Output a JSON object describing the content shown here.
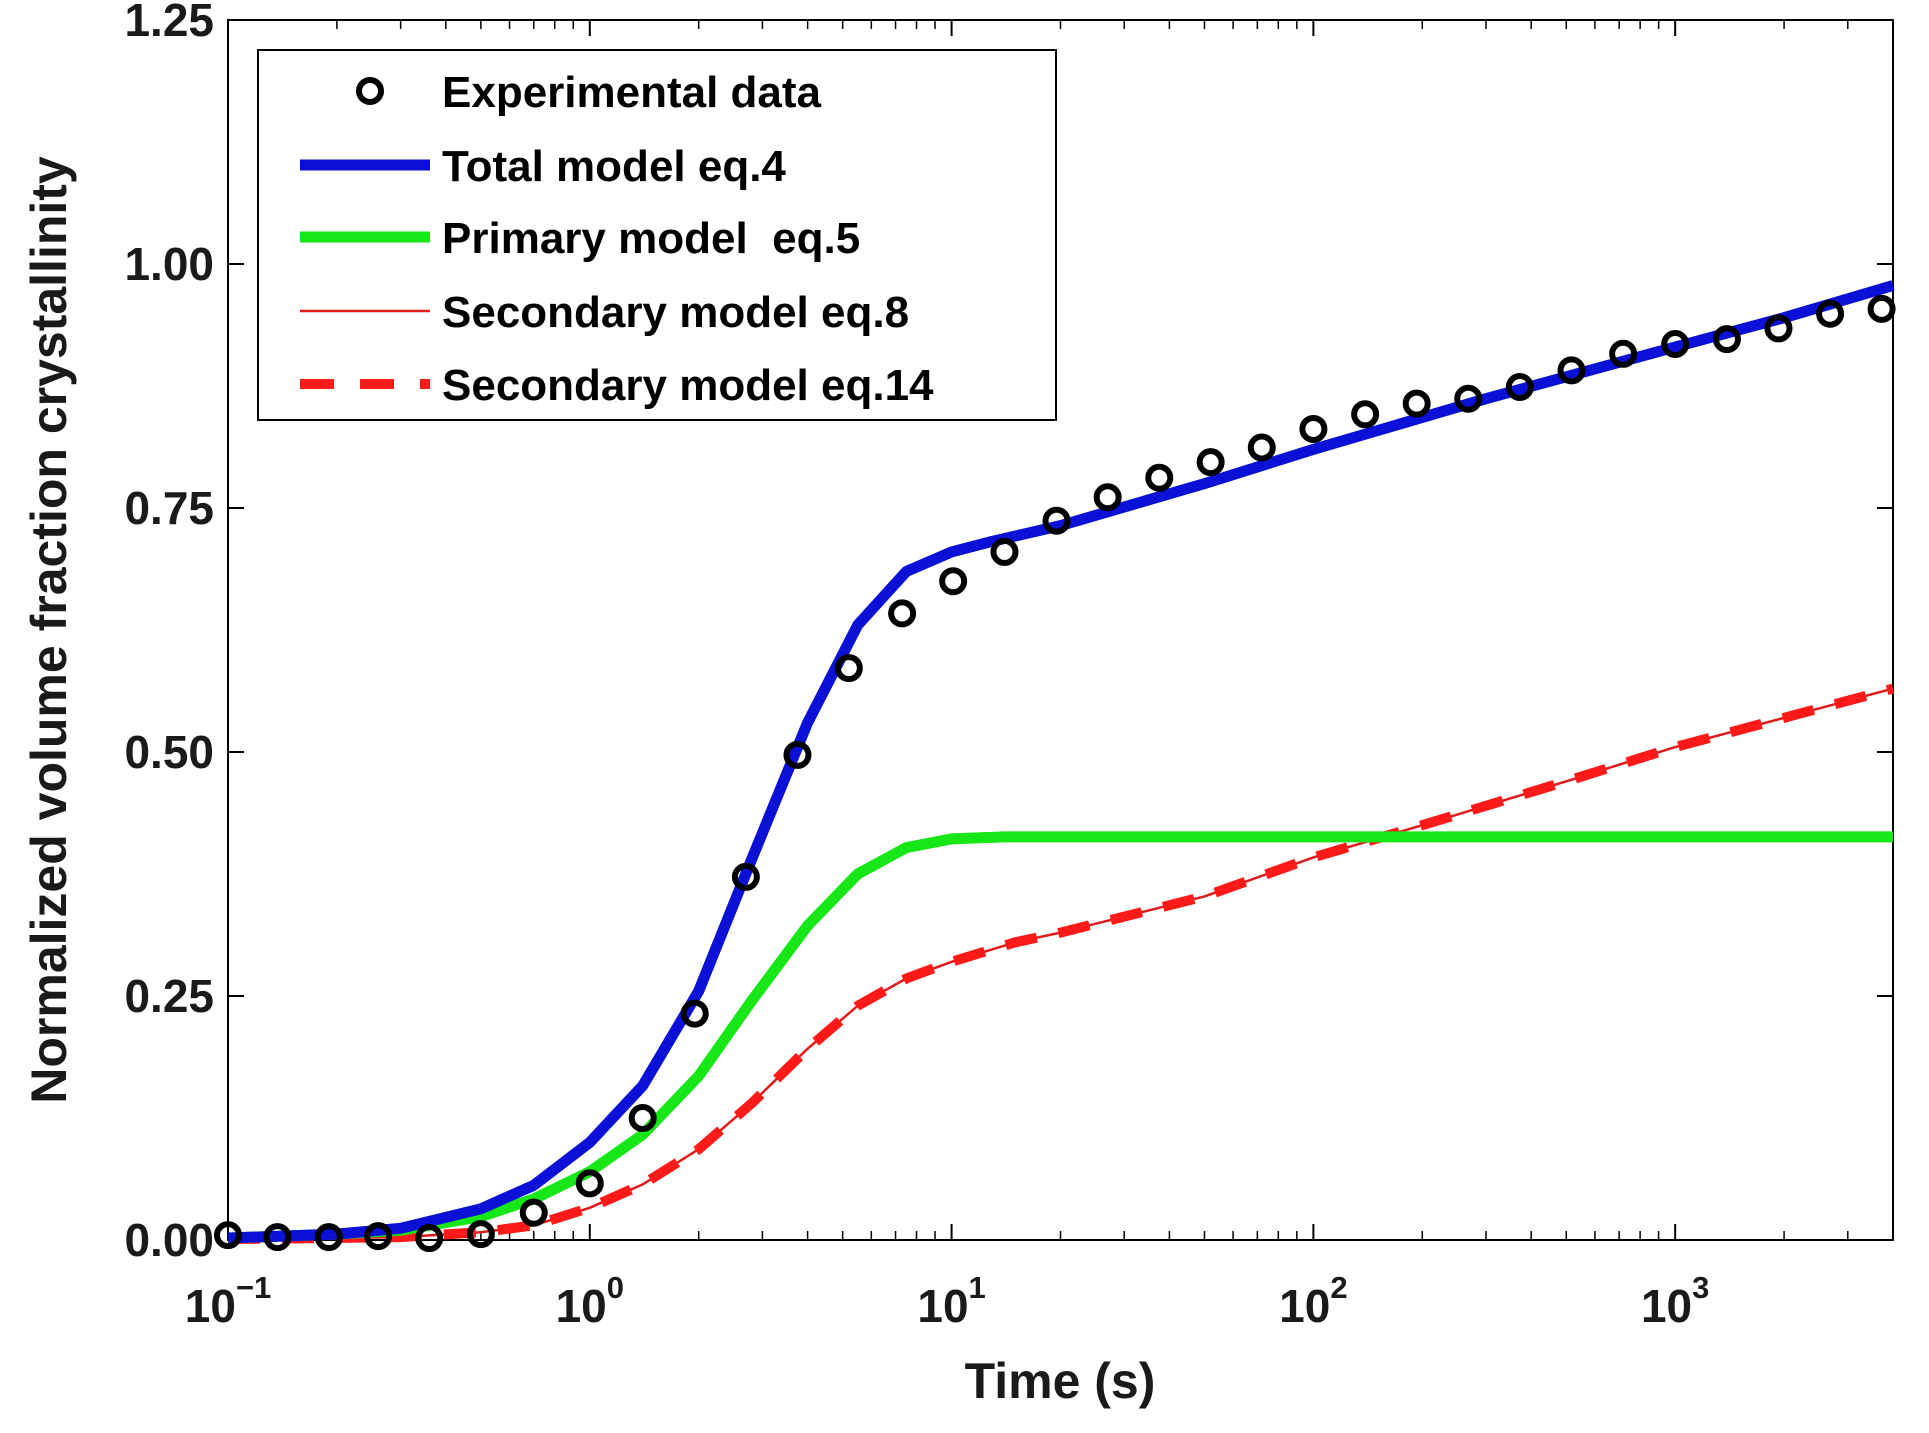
{
  "chart_data": {
    "type": "line",
    "title": "",
    "xlabel": "Time (s)",
    "ylabel": "Normalized volume fraction crystallinity",
    "xscale": "log",
    "xlim": [
      0.1,
      4000
    ],
    "ylim": [
      0,
      1.25
    ],
    "x_ticks": [
      {
        "value": 0.1,
        "base": "10",
        "exp": "−1"
      },
      {
        "value": 1,
        "base": "10",
        "exp": "0"
      },
      {
        "value": 10,
        "base": "10",
        "exp": "1"
      },
      {
        "value": 100,
        "base": "10",
        "exp": "2"
      },
      {
        "value": 1000,
        "base": "10",
        "exp": "3"
      }
    ],
    "y_ticks": [
      {
        "value": 0,
        "label": "0.00"
      },
      {
        "value": 0.25,
        "label": "0.25"
      },
      {
        "value": 0.5,
        "label": "0.50"
      },
      {
        "value": 0.75,
        "label": "0.75"
      },
      {
        "value": 1.0,
        "label": "1.00"
      },
      {
        "value": 1.25,
        "label": "1.25"
      }
    ],
    "grid": false,
    "legend_position": "top-left",
    "series": [
      {
        "name": "Experimental data",
        "style": "markers",
        "color": "#000000",
        "x": [
          0.1,
          0.137,
          0.19,
          0.26,
          0.36,
          0.5,
          0.7,
          1.0,
          1.4,
          1.95,
          2.7,
          3.75,
          5.2,
          7.3,
          10.1,
          14,
          19.5,
          27,
          37.5,
          52,
          72,
          100,
          139,
          193,
          268,
          372,
          517,
          718,
          1000,
          1390,
          1930,
          2680,
          3720
        ],
        "y": [
          0.005,
          0.003,
          0.003,
          0.004,
          0.002,
          0.006,
          0.028,
          0.058,
          0.125,
          0.232,
          0.372,
          0.497,
          0.586,
          0.642,
          0.675,
          0.705,
          0.737,
          0.761,
          0.781,
          0.797,
          0.812,
          0.831,
          0.846,
          0.857,
          0.862,
          0.874,
          0.891,
          0.908,
          0.918,
          0.923,
          0.934,
          0.949,
          0.954
        ]
      },
      {
        "name": "Total model eq.4",
        "style": "line",
        "color": "#0a10d6",
        "x": [
          0.1,
          0.2,
          0.3,
          0.5,
          0.7,
          1.0,
          1.4,
          2.0,
          2.8,
          4.0,
          5.5,
          7.5,
          10,
          13,
          20,
          50,
          100,
          300,
          1000,
          2000,
          4000
        ],
        "y": [
          0.002,
          0.006,
          0.012,
          0.032,
          0.056,
          0.1,
          0.158,
          0.255,
          0.39,
          0.53,
          0.63,
          0.685,
          0.705,
          0.716,
          0.732,
          0.775,
          0.81,
          0.862,
          0.915,
          0.945,
          0.978
        ]
      },
      {
        "name": "Primary model  eq.5",
        "style": "line",
        "color": "#17e617",
        "x": [
          0.1,
          0.2,
          0.3,
          0.5,
          0.7,
          1.0,
          1.4,
          2.0,
          2.8,
          4.0,
          5.5,
          7.5,
          10,
          14,
          20,
          50,
          100,
          1000,
          4000
        ],
        "y": [
          0.002,
          0.006,
          0.01,
          0.024,
          0.042,
          0.07,
          0.108,
          0.168,
          0.245,
          0.322,
          0.375,
          0.402,
          0.411,
          0.413,
          0.413,
          0.413,
          0.413,
          0.413,
          0.413
        ]
      },
      {
        "name": "Secondary model eq.8",
        "style": "line",
        "color": "#e01b1b",
        "x": [
          0.1,
          0.2,
          0.3,
          0.5,
          0.7,
          1.0,
          1.4,
          2.0,
          2.8,
          4.0,
          5.5,
          7.5,
          10,
          15,
          20,
          50,
          100,
          200,
          500,
          1000,
          2000,
          4000
        ],
        "y": [
          0.001,
          0.002,
          0.003,
          0.008,
          0.015,
          0.033,
          0.057,
          0.093,
          0.14,
          0.196,
          0.24,
          0.268,
          0.285,
          0.305,
          0.315,
          0.352,
          0.392,
          0.425,
          0.47,
          0.505,
          0.535,
          0.565
        ]
      },
      {
        "name": "Secondary model eq.14",
        "style": "dashed",
        "color": "#ff1a1a",
        "x": [
          0.1,
          0.2,
          0.3,
          0.5,
          0.7,
          1.0,
          1.4,
          2.0,
          2.8,
          4.0,
          5.5,
          7.5,
          10,
          15,
          20,
          50,
          100,
          200,
          500,
          1000,
          2000,
          4000
        ],
        "y": [
          0.001,
          0.002,
          0.003,
          0.008,
          0.015,
          0.033,
          0.057,
          0.093,
          0.14,
          0.196,
          0.24,
          0.268,
          0.285,
          0.305,
          0.315,
          0.352,
          0.392,
          0.425,
          0.47,
          0.505,
          0.535,
          0.565
        ]
      }
    ]
  }
}
